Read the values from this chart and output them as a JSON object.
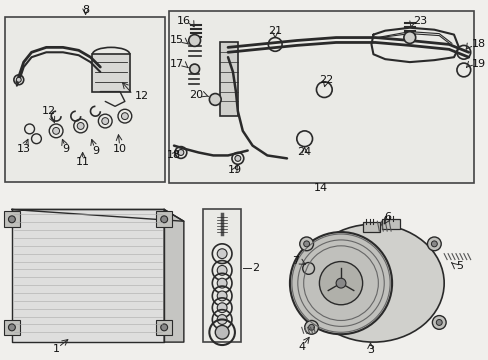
{
  "bg_color": "#f0efec",
  "box_fill": "#eaeae6",
  "line_color": "#2a2a2a",
  "text_color": "#111111",
  "fig_width": 4.89,
  "fig_height": 3.6,
  "dpi": 100
}
